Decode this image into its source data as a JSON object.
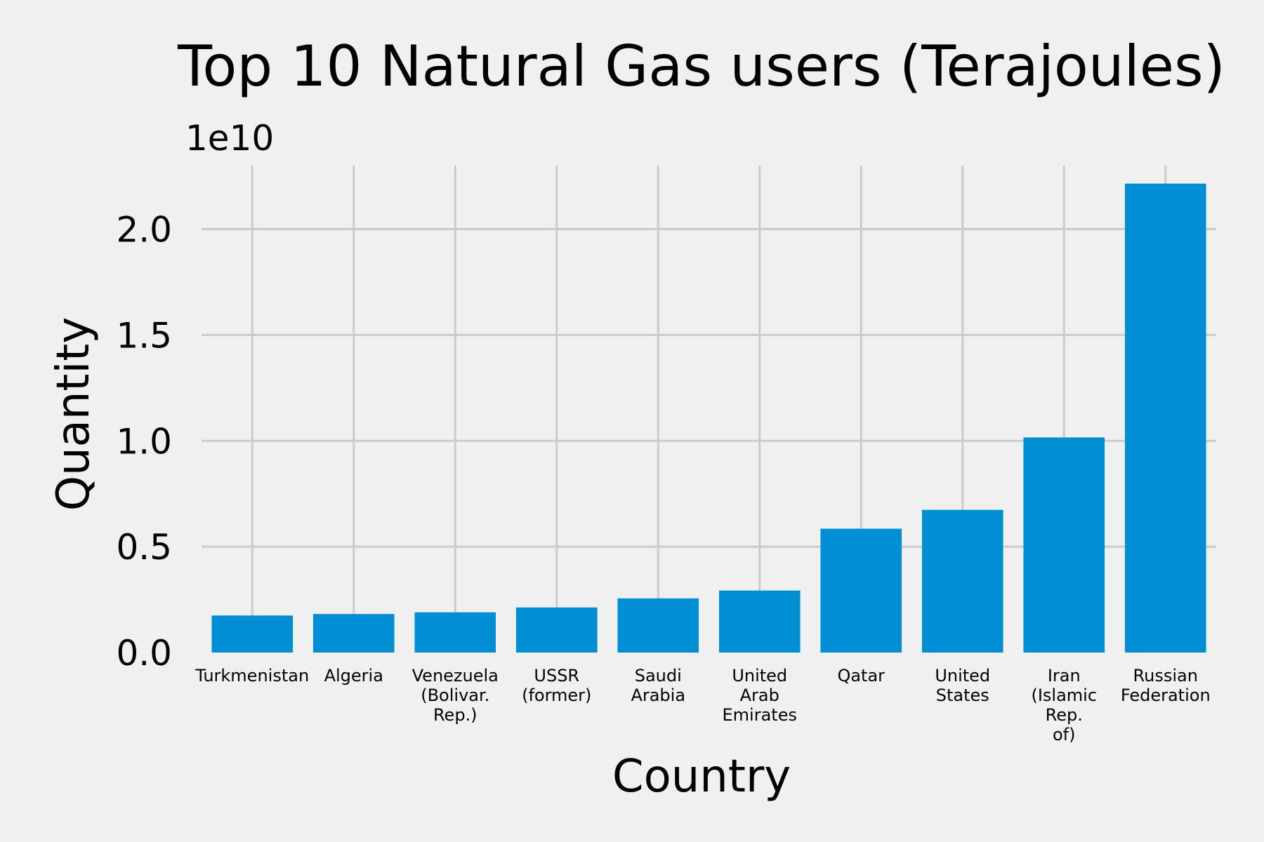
{
  "chart_data": {
    "type": "bar",
    "title": "Top 10 Natural Gas users (Terajoules)",
    "xlabel": "Country",
    "ylabel": "Quantity",
    "y_offset_label": "1e10",
    "y_scale": 10000000000,
    "ylim": [
      0,
      23000000000
    ],
    "yticks": [
      0,
      5000000000,
      10000000000,
      15000000000,
      20000000000
    ],
    "ytick_labels": [
      "0.0",
      "0.5",
      "1.0",
      "1.5",
      "2.0"
    ],
    "grid": true,
    "color": "#008fd5",
    "background": "#f0f0f0",
    "categories": [
      [
        "Turkmenistan"
      ],
      [
        "Algeria"
      ],
      [
        "Venezuela",
        "(Bolivar.",
        "Rep.)"
      ],
      [
        "USSR",
        "(former)"
      ],
      [
        "Saudi",
        "Arabia"
      ],
      [
        "United",
        "Arab",
        "Emirates"
      ],
      [
        "Qatar"
      ],
      [
        "United",
        "States"
      ],
      [
        "Iran",
        "(Islamic",
        "Rep.",
        "of)"
      ],
      [
        "Russian",
        "Federation"
      ]
    ],
    "values": [
      1750000000,
      1820000000,
      1900000000,
      2130000000,
      2560000000,
      2930000000,
      5850000000,
      6740000000,
      10160000000,
      22150000000
    ]
  }
}
